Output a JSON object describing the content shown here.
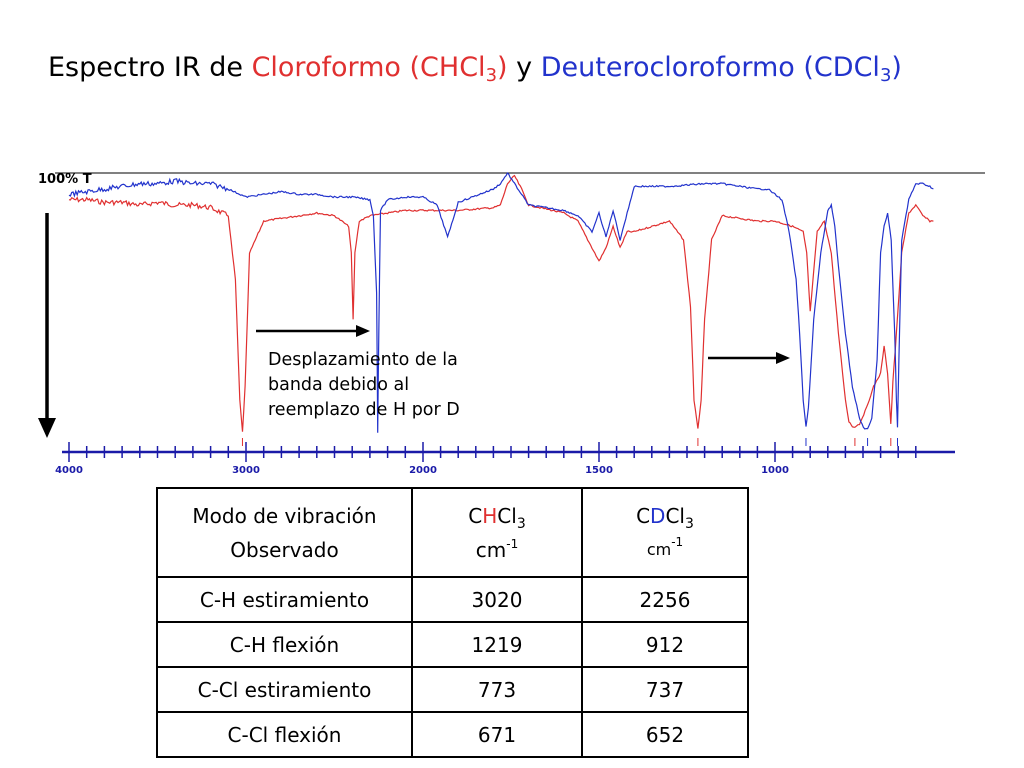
{
  "title": {
    "prefix": "Espectro IR de ",
    "chcl3_name": "Cloroformo (CHCl",
    "chcl3_sub": "3",
    "chcl3_close": ")",
    "mid": " y ",
    "cdcl3_name": "Deuterocloroformo (CDCl",
    "cdcl3_sub": "3",
    "cdcl3_close": ")"
  },
  "colors": {
    "chcl3": "#e03030",
    "cdcl3": "#2233cc",
    "axis": "#1a1aa8",
    "text": "#000000"
  },
  "annotation": {
    "lines": [
      "Desplazamiento de la",
      "banda debido al",
      "reemplazo de H por D"
    ]
  },
  "chart_data": {
    "type": "line",
    "x_label_ticks": [
      4000,
      3000,
      2000,
      1500,
      1000
    ],
    "xlim": [
      4000,
      550
    ],
    "x_scale": "wavenumber axis, 4000 to 2000 cm-1 expanded relative to 2000 to 550",
    "y_axis_text": "100% T",
    "y_scale": "relative",
    "ylim": [
      0,
      100
    ],
    "grid": false,
    "series": [
      {
        "name": "CHCl3",
        "color": "#e03030",
        "x": [
          4000,
          3900,
          3800,
          3700,
          3600,
          3500,
          3400,
          3300,
          3200,
          3100,
          3060,
          3035,
          3020,
          3005,
          2980,
          2900,
          2800,
          2700,
          2600,
          2500,
          2420,
          2405,
          2395,
          2385,
          2360,
          2300,
          2200,
          2100,
          2000,
          1900,
          1800,
          1780,
          1760,
          1740,
          1720,
          1700,
          1600,
          1560,
          1520,
          1500,
          1480,
          1460,
          1440,
          1420,
          1400,
          1350,
          1300,
          1260,
          1240,
          1230,
          1219,
          1210,
          1200,
          1180,
          1150,
          1100,
          1050,
          1000,
          950,
          920,
          910,
          900,
          880,
          860,
          840,
          820,
          800,
          790,
          780,
          773,
          760,
          740,
          720,
          700,
          690,
          680,
          671,
          665,
          655,
          640,
          620,
          600,
          580,
          560,
          550
        ],
        "y": [
          90,
          90,
          89,
          89,
          88,
          89,
          88,
          88,
          87,
          84,
          60,
          15,
          3,
          20,
          70,
          82,
          83,
          84,
          85,
          84,
          80,
          70,
          45,
          70,
          82,
          84,
          85,
          86,
          86,
          86,
          87,
          88,
          96,
          99,
          94,
          88,
          85,
          82,
          72,
          67,
          72,
          80,
          72,
          78,
          78,
          80,
          82,
          75,
          50,
          15,
          4,
          15,
          45,
          75,
          84,
          83,
          82,
          82,
          80,
          78,
          70,
          48,
          78,
          82,
          70,
          40,
          15,
          7,
          5,
          5,
          6,
          12,
          20,
          25,
          35,
          25,
          6,
          22,
          40,
          70,
          85,
          88,
          84,
          82,
          82
        ]
      },
      {
        "name": "CDCl3",
        "color": "#2233cc",
        "x": [
          4000,
          3900,
          3800,
          3700,
          3600,
          3500,
          3400,
          3300,
          3200,
          3100,
          3000,
          2900,
          2800,
          2700,
          2600,
          2500,
          2400,
          2300,
          2280,
          2262,
          2256,
          2250,
          2240,
          2200,
          2100,
          2000,
          1960,
          1930,
          1900,
          1800,
          1780,
          1760,
          1740,
          1720,
          1700,
          1600,
          1560,
          1520,
          1500,
          1480,
          1460,
          1440,
          1420,
          1400,
          1300,
          1200,
          1150,
          1100,
          1050,
          1020,
          1000,
          980,
          960,
          940,
          930,
          920,
          912,
          905,
          890,
          870,
          850,
          840,
          830,
          820,
          800,
          780,
          760,
          745,
          737,
          725,
          710,
          700,
          690,
          680,
          670,
          660,
          655,
          652,
          648,
          640,
          620,
          600,
          580,
          560,
          550
        ],
        "y": [
          92,
          93,
          94,
          95,
          96,
          96,
          97,
          96,
          96,
          94,
          91,
          92,
          93,
          92,
          92,
          91,
          91,
          90,
          84,
          55,
          3,
          40,
          86,
          90,
          91,
          91,
          88,
          76,
          89,
          94,
          96,
          100,
          96,
          92,
          88,
          86,
          84,
          78,
          85,
          76,
          86,
          75,
          85,
          95,
          95,
          96,
          96,
          95,
          94,
          94,
          92,
          90,
          78,
          60,
          40,
          15,
          5,
          12,
          45,
          70,
          86,
          88,
          80,
          65,
          40,
          20,
          8,
          4,
          4,
          8,
          30,
          70,
          80,
          85,
          75,
          40,
          15,
          5,
          30,
          75,
          90,
          96,
          96,
          95,
          94
        ]
      }
    ],
    "arrows": [
      {
        "from": 3000,
        "to": 2256
      },
      {
        "from": 1219,
        "to": 912
      }
    ]
  },
  "table": {
    "header": {
      "mode_line1": "Modo de vibración",
      "mode_line2": "Observado",
      "chcl3_c": "C",
      "chcl3_h": "H",
      "chcl3_cl": "Cl",
      "chcl3_sub": "3",
      "cdcl3_c": "C",
      "cdcl3_d": "D",
      "cdcl3_cl": "Cl",
      "cdcl3_sub": "3",
      "unit": "cm",
      "unit_exp": "-1"
    },
    "rows": [
      {
        "mode": "C-H estiramiento",
        "chcl3": "3020",
        "cdcl3": "2256"
      },
      {
        "mode": "C-H flexión",
        "chcl3": "1219",
        "cdcl3": "912"
      },
      {
        "mode": "C-Cl estiramiento",
        "chcl3": "773",
        "cdcl3": "737"
      },
      {
        "mode": "C-Cl flexión",
        "chcl3": "671",
        "cdcl3": "652"
      }
    ]
  }
}
